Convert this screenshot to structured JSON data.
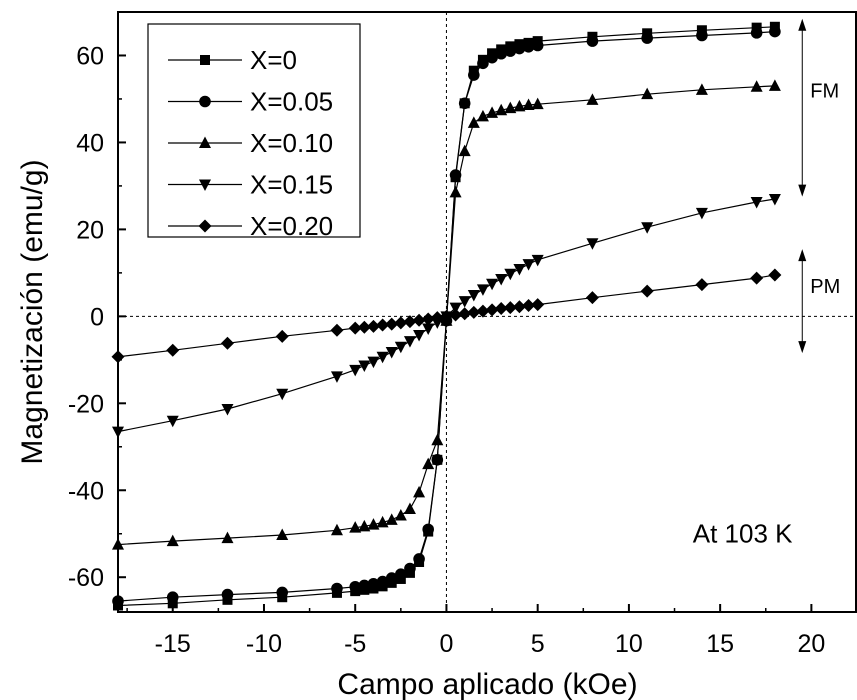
{
  "chart_data": {
    "type": "scatter",
    "xlabel": "Campo aplicado (kOe)",
    "ylabel": "Magnetización (emu/g)",
    "xlim": [
      -18,
      22.5
    ],
    "ylim": [
      -68,
      70
    ],
    "xticks": [
      -15,
      -10,
      -5,
      0,
      5,
      10,
      15,
      20
    ],
    "yticks": [
      -60,
      -40,
      -20,
      0,
      20,
      40,
      60
    ],
    "grid": false,
    "zero_lines": "dashed at x=0 and y=0",
    "legend_position": "top-left",
    "series": [
      {
        "name": "X=0",
        "marker": "square",
        "x": [
          -18,
          -15,
          -12,
          -9,
          -6,
          -5,
          -4.5,
          -4,
          -3.5,
          -3,
          -2.5,
          -2,
          -1.5,
          -1,
          -0.5,
          0,
          0.5,
          1,
          1.5,
          2,
          2.5,
          3,
          3.5,
          4,
          4.5,
          5,
          8,
          11,
          14,
          17,
          18
        ],
        "y": [
          -66.5,
          -66,
          -65.2,
          -64.6,
          -63.6,
          -63.2,
          -62.9,
          -62.6,
          -62.1,
          -61.3,
          -60.4,
          -59,
          -56.5,
          -49.5,
          -33,
          -1,
          32,
          49,
          56.5,
          59,
          60.5,
          61.4,
          62.1,
          62.6,
          62.9,
          63.3,
          64.3,
          65.1,
          65.8,
          66.4,
          66.6
        ]
      },
      {
        "name": "X=0.05",
        "marker": "circle",
        "x": [
          -18,
          -15,
          -12,
          -9,
          -6,
          -5,
          -4.5,
          -4,
          -3.5,
          -3,
          -2.5,
          -2,
          -1.5,
          -1,
          -0.5,
          0,
          0.5,
          1,
          1.5,
          2,
          2.5,
          3,
          3.5,
          4,
          4.5,
          5,
          8,
          11,
          14,
          17,
          18
        ],
        "y": [
          -65.5,
          -64.6,
          -64,
          -63.5,
          -62.6,
          -62.2,
          -61.9,
          -61.5,
          -61,
          -60.2,
          -59.3,
          -58,
          -55.8,
          -49,
          -33,
          -1,
          32.5,
          49,
          55.5,
          58.2,
          59.5,
          60.4,
          61,
          61.6,
          62,
          62.3,
          63.3,
          64,
          64.6,
          65.2,
          65.5
        ]
      },
      {
        "name": "X=0.10",
        "marker": "triangle-up",
        "x": [
          -18,
          -15,
          -12,
          -9,
          -6,
          -5,
          -4.5,
          -4,
          -3.5,
          -3,
          -2.5,
          -2,
          -1.5,
          -1,
          -0.5,
          0,
          0.5,
          1,
          1.5,
          2,
          2.5,
          3,
          3.5,
          4,
          4.5,
          5,
          8,
          11,
          14,
          17,
          18
        ],
        "y": [
          -52.5,
          -51.7,
          -51,
          -50.3,
          -49.2,
          -48.6,
          -48.3,
          -47.9,
          -47.4,
          -46.8,
          -45.8,
          -44.3,
          -40.5,
          -34,
          -28.5,
          -1,
          28.5,
          38,
          44.5,
          46,
          46.8,
          47.4,
          47.9,
          48.3,
          48.6,
          48.8,
          49.8,
          51.1,
          52.1,
          52.8,
          53
        ]
      },
      {
        "name": "X=0.15",
        "marker": "triangle-down",
        "x": [
          -18,
          -15,
          -12,
          -9,
          -6,
          -5,
          -4.5,
          -4,
          -3.5,
          -3,
          -2.5,
          -2,
          -1.5,
          -1,
          -0.5,
          0,
          0.5,
          1,
          1.5,
          2,
          2.5,
          3,
          3.5,
          4,
          4.5,
          5,
          8,
          11,
          14,
          17,
          18
        ],
        "y": [
          -26.5,
          -24,
          -21.3,
          -17.8,
          -13.8,
          -12.3,
          -11.3,
          -10.4,
          -9.3,
          -8.2,
          -7,
          -5.7,
          -4.3,
          -2.8,
          -1.4,
          0,
          2,
          3.5,
          4.9,
          6.2,
          7.5,
          8.6,
          9.8,
          10.9,
          12,
          13,
          16.8,
          20.5,
          23.8,
          26.3,
          27
        ]
      },
      {
        "name": "X=0.20",
        "marker": "diamond",
        "x": [
          -18,
          -15,
          -12,
          -9,
          -6,
          -5,
          -4.5,
          -4,
          -3.5,
          -3,
          -2.5,
          -2,
          -1.5,
          -1,
          -0.5,
          0,
          0.5,
          1,
          1.5,
          2,
          2.5,
          3,
          3.5,
          4,
          4.5,
          5,
          8,
          11,
          14,
          17,
          18
        ],
        "y": [
          -9.3,
          -7.8,
          -6.2,
          -4.6,
          -3.2,
          -2.7,
          -2.5,
          -2.3,
          -2,
          -1.8,
          -1.5,
          -1.2,
          -0.9,
          -0.6,
          -0.3,
          0,
          0.3,
          0.6,
          0.9,
          1.2,
          1.5,
          1.8,
          2,
          2.2,
          2.5,
          2.7,
          4.3,
          5.8,
          7.3,
          8.8,
          9.5
        ]
      }
    ],
    "annotations": [
      {
        "text": "FM",
        "kind": "double-arrow",
        "x": 19.5,
        "y_range": [
          28,
          68
        ]
      },
      {
        "text": "PM",
        "kind": "double-arrow",
        "x": 19.5,
        "y_range": [
          -8,
          15
        ]
      },
      {
        "text": "At 103 K",
        "x": 13.5,
        "y": -50
      }
    ]
  }
}
